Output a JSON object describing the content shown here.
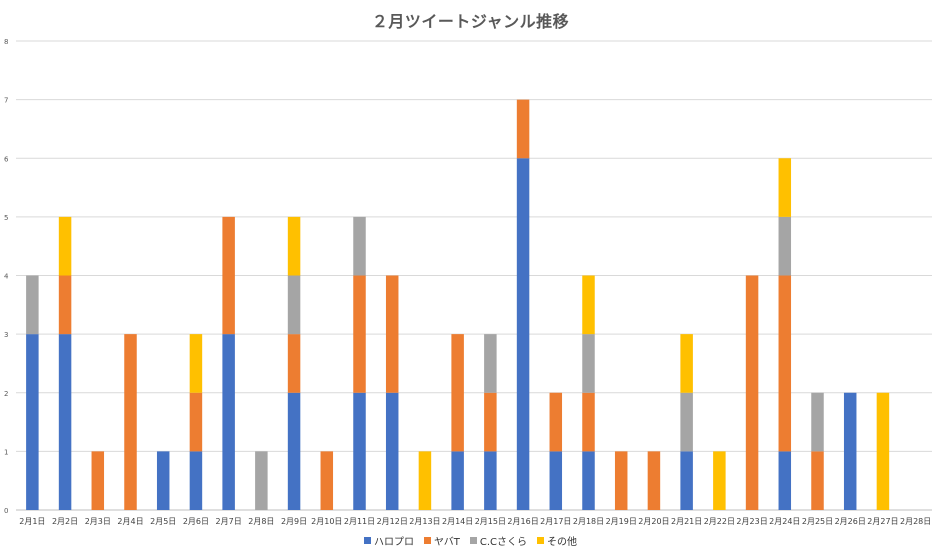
{
  "chart_data": {
    "type": "bar",
    "stacked": true,
    "title": "２月ツイートジャンル推移",
    "xlabel": "",
    "ylabel": "",
    "ylim": [
      0,
      8
    ],
    "yticks": [
      "0",
      "1",
      "2",
      "3",
      "4",
      "5",
      "6",
      "7",
      "8"
    ],
    "grid": true,
    "legend_position": "bottom",
    "categories": [
      "2月1日",
      "2月2日",
      "2月3日",
      "2月4日",
      "2月5日",
      "2月6日",
      "2月7日",
      "2月8日",
      "2月9日",
      "2月10日",
      "2月11日",
      "2月12日",
      "2月13日",
      "2月14日",
      "2月15日",
      "2月16日",
      "2月17日",
      "2月18日",
      "2月19日",
      "2月20日",
      "2月21日",
      "2月22日",
      "2月23日",
      "2月24日",
      "2月25日",
      "2月26日",
      "2月27日",
      "2月28日"
    ],
    "series": [
      {
        "name": "ハロプロ",
        "color": "#4472C4",
        "values": [
          3,
          3,
          0,
          0,
          1,
          1,
          3,
          0,
          2,
          0,
          2,
          2,
          0,
          1,
          1,
          6,
          1,
          1,
          0,
          0,
          1,
          0,
          0,
          1,
          0,
          2,
          0,
          0
        ]
      },
      {
        "name": "ヤバT",
        "color": "#ED7D31",
        "values": [
          0,
          1,
          1,
          3,
          0,
          1,
          2,
          0,
          1,
          1,
          2,
          2,
          0,
          2,
          1,
          1,
          1,
          1,
          1,
          1,
          0,
          0,
          4,
          3,
          1,
          0,
          0,
          0
        ]
      },
      {
        "name": "C.Cさくら",
        "color": "#A5A5A5",
        "values": [
          1,
          0,
          0,
          0,
          0,
          0,
          0,
          1,
          1,
          0,
          1,
          0,
          0,
          0,
          1,
          0,
          0,
          1,
          0,
          0,
          1,
          0,
          0,
          1,
          1,
          0,
          0,
          0
        ]
      },
      {
        "name": "その他",
        "color": "#FFC000",
        "values": [
          0,
          1,
          0,
          0,
          0,
          1,
          0,
          0,
          1,
          0,
          0,
          0,
          1,
          0,
          0,
          0,
          0,
          1,
          0,
          0,
          1,
          1,
          0,
          1,
          0,
          0,
          2,
          0
        ]
      }
    ]
  }
}
